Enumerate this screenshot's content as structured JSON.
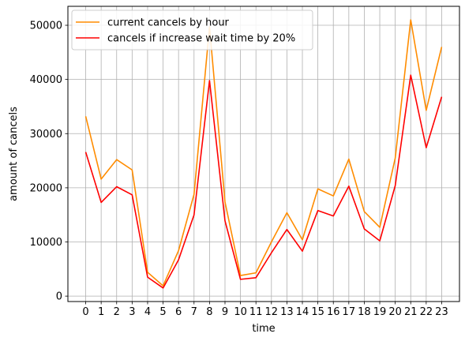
{
  "chart_data": {
    "type": "line",
    "title": "",
    "xlabel": "time",
    "ylabel": "amount of cancels",
    "x": [
      0,
      1,
      2,
      3,
      4,
      5,
      6,
      7,
      8,
      9,
      10,
      11,
      12,
      13,
      14,
      15,
      16,
      17,
      18,
      19,
      20,
      21,
      22,
      23
    ],
    "xlim": [
      -1.15,
      24.15
    ],
    "ylim": [
      -1000,
      53500
    ],
    "yticks": [
      0,
      10000,
      20000,
      30000,
      40000,
      50000
    ],
    "grid": true,
    "legend_position": "upper-left",
    "series": [
      {
        "name": "current cancels by hour",
        "color": "#ff8c00",
        "values": [
          33200,
          21600,
          25200,
          23300,
          4400,
          1900,
          8400,
          18800,
          49700,
          17400,
          3800,
          4300,
          10000,
          15400,
          10400,
          19800,
          18500,
          25300,
          15600,
          12700,
          25500,
          51000,
          34300,
          46000
        ]
      },
      {
        "name": "cancels if increase wait time by 20%",
        "color": "#ff0000",
        "values": [
          26600,
          17300,
          20200,
          18700,
          3500,
          1500,
          6700,
          15000,
          39800,
          13900,
          3100,
          3400,
          8000,
          12300,
          8300,
          15800,
          14800,
          20300,
          12400,
          10200,
          20400,
          40800,
          27400,
          36800
        ]
      }
    ]
  }
}
